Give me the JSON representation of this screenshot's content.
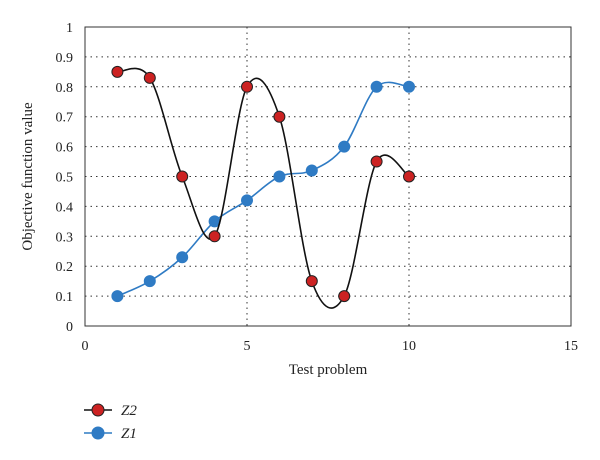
{
  "chart_data": {
    "type": "line",
    "title": "",
    "xlabel": "Test problem",
    "ylabel": "Objective function value",
    "xlim": [
      0,
      15
    ],
    "ylim": [
      0,
      1
    ],
    "xticks": [
      0,
      5,
      10,
      15
    ],
    "yticks": [
      0,
      0.1,
      0.2,
      0.3,
      0.4,
      0.5,
      0.6,
      0.7,
      0.8,
      0.9,
      1
    ],
    "xtick_labels": [
      "0",
      "5",
      "10",
      "15"
    ],
    "ytick_labels": [
      "0",
      "0.1",
      "0.2",
      "0.3",
      "0.4",
      "0.5",
      "0.6",
      "0.7",
      "0.8",
      "0.9",
      "1"
    ],
    "grid": true,
    "smooth": true,
    "legend_position": "below",
    "series": [
      {
        "name": "Z2",
        "line_color": "#111111",
        "marker_color": "#cc2222",
        "x": [
          1,
          2,
          3,
          4,
          5,
          6,
          7,
          8,
          9,
          10
        ],
        "values": [
          0.85,
          0.83,
          0.5,
          0.3,
          0.8,
          0.7,
          0.15,
          0.1,
          0.55,
          0.5
        ]
      },
      {
        "name": "Z1",
        "line_color": "#2f7bc4",
        "marker_color": "#2f7bc4",
        "x": [
          1,
          2,
          3,
          4,
          5,
          6,
          7,
          8,
          9,
          10
        ],
        "values": [
          0.1,
          0.15,
          0.23,
          0.35,
          0.42,
          0.5,
          0.52,
          0.6,
          0.8,
          0.8
        ]
      }
    ]
  }
}
